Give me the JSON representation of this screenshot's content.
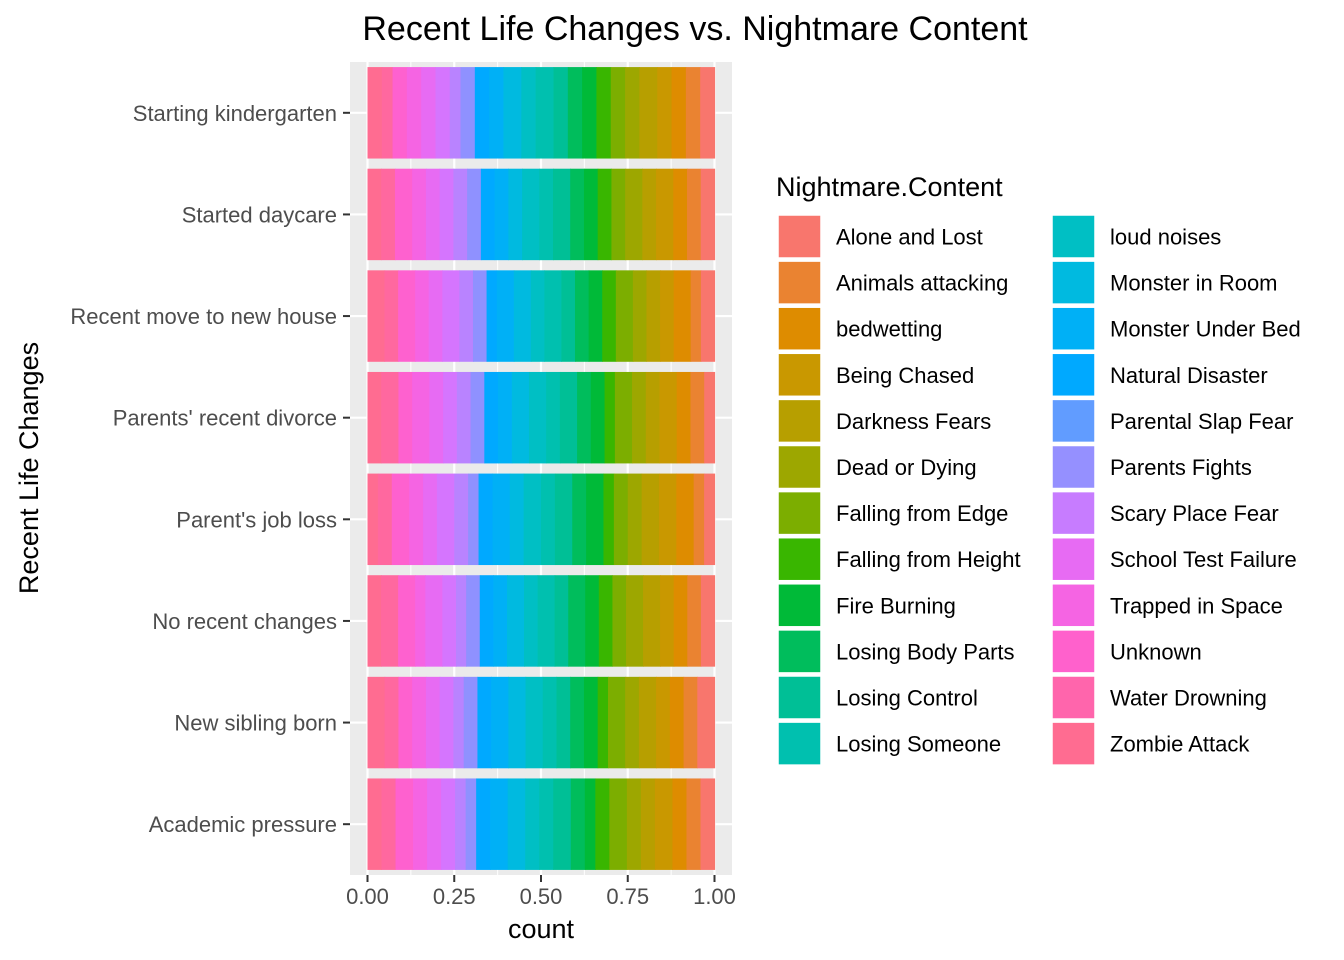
{
  "chart_data": {
    "type": "bar",
    "orientation": "horizontal",
    "stacking": "fill",
    "title": "Recent Life Changes vs. Nightmare Content",
    "xlabel": "count",
    "ylabel": "Recent Life Changes",
    "xlim": [
      0,
      1
    ],
    "x_ticks": [
      "0.00",
      "0.25",
      "0.50",
      "0.75",
      "1.00"
    ],
    "grid": true,
    "legend_position": "right",
    "legend_title": "Nightmare.Content",
    "categories": [
      "Academic pressure",
      "New sibling born",
      "No recent changes",
      "Parent's job loss",
      "Parents' recent divorce",
      "Recent move to new house",
      "Started daycare",
      "Starting kindergarten"
    ],
    "series": [
      {
        "name": "Zombie Attack",
        "color": "#FF6C91",
        "values": [
          0.04,
          0.05,
          0.04,
          0.03,
          0.04,
          0.05,
          0.04,
          0.04
        ]
      },
      {
        "name": "Water Drowning",
        "color": "#FF689F",
        "values": [
          0.04,
          0.04,
          0.05,
          0.04,
          0.05,
          0.04,
          0.04,
          0.03
        ]
      },
      {
        "name": "Unknown",
        "color": "#FE61CF",
        "values": [
          0.05,
          0.04,
          0.05,
          0.05,
          0.04,
          0.05,
          0.05,
          0.04
        ]
      },
      {
        "name": "Trapped in Space",
        "color": "#F564E3",
        "values": [
          0.04,
          0.04,
          0.03,
          0.04,
          0.05,
          0.04,
          0.04,
          0.04
        ]
      },
      {
        "name": "School Test Failure",
        "color": "#E76BF3",
        "values": [
          0.04,
          0.04,
          0.05,
          0.04,
          0.04,
          0.04,
          0.04,
          0.04
        ]
      },
      {
        "name": "Scary Place Fear",
        "color": "#D575FE",
        "values": [
          0.04,
          0.04,
          0.04,
          0.05,
          0.04,
          0.05,
          0.04,
          0.04
        ]
      },
      {
        "name": "Parents Fights",
        "color": "#B983FF",
        "values": [
          0.03,
          0.03,
          0.03,
          0.04,
          0.04,
          0.04,
          0.04,
          0.03
        ]
      },
      {
        "name": "Parental Slap Fear",
        "color": "#8F91FF",
        "values": [
          0.03,
          0.04,
          0.04,
          0.03,
          0.04,
          0.04,
          0.04,
          0.04
        ]
      },
      {
        "name": "Natural Disaster",
        "color": "#00A9FF",
        "values": [
          0.04,
          0.04,
          0.04,
          0.04,
          0.04,
          0.03,
          0.04,
          0.04
        ]
      },
      {
        "name": "Monster Under Bed",
        "color": "#00B0F6",
        "values": [
          0.05,
          0.05,
          0.04,
          0.05,
          0.04,
          0.05,
          0.04,
          0.04
        ]
      },
      {
        "name": "Monster in Room",
        "color": "#00BAE0",
        "values": [
          0.05,
          0.05,
          0.05,
          0.04,
          0.05,
          0.05,
          0.04,
          0.05
        ]
      },
      {
        "name": "loud noises",
        "color": "#00BFC4",
        "values": [
          0.04,
          0.05,
          0.04,
          0.05,
          0.05,
          0.04,
          0.05,
          0.04
        ]
      },
      {
        "name": "Losing Someone",
        "color": "#00C0AF",
        "values": [
          0.04,
          0.04,
          0.05,
          0.04,
          0.04,
          0.05,
          0.04,
          0.05
        ]
      },
      {
        "name": "Losing Control",
        "color": "#00BF96",
        "values": [
          0.05,
          0.04,
          0.04,
          0.05,
          0.05,
          0.04,
          0.05,
          0.04
        ]
      },
      {
        "name": "Losing Body Parts",
        "color": "#00BD5C",
        "values": [
          0.04,
          0.04,
          0.05,
          0.04,
          0.04,
          0.04,
          0.04,
          0.04
        ]
      },
      {
        "name": "Fire Burning",
        "color": "#00BA38",
        "values": [
          0.03,
          0.04,
          0.04,
          0.05,
          0.04,
          0.04,
          0.04,
          0.04
        ]
      },
      {
        "name": "Falling from Height",
        "color": "#39B600",
        "values": [
          0.04,
          0.03,
          0.04,
          0.03,
          0.03,
          0.04,
          0.04,
          0.04
        ]
      },
      {
        "name": "Falling from Edge",
        "color": "#7CAE00",
        "values": [
          0.05,
          0.05,
          0.04,
          0.04,
          0.05,
          0.05,
          0.04,
          0.04
        ]
      },
      {
        "name": "Dead or Dying",
        "color": "#9DA700",
        "values": [
          0.04,
          0.04,
          0.05,
          0.04,
          0.04,
          0.04,
          0.05,
          0.04
        ]
      },
      {
        "name": "Darkness Fears",
        "color": "#B79F00",
        "values": [
          0.04,
          0.05,
          0.05,
          0.05,
          0.04,
          0.04,
          0.04,
          0.05
        ]
      },
      {
        "name": "Being Chased",
        "color": "#C99800",
        "values": [
          0.05,
          0.04,
          0.04,
          0.05,
          0.05,
          0.04,
          0.05,
          0.04
        ]
      },
      {
        "name": "bedwetting",
        "color": "#DE8C00",
        "values": [
          0.04,
          0.04,
          0.04,
          0.05,
          0.04,
          0.05,
          0.04,
          0.04
        ]
      },
      {
        "name": "Animals attacking",
        "color": "#EA8331",
        "values": [
          0.04,
          0.04,
          0.04,
          0.03,
          0.04,
          0.03,
          0.04,
          0.04
        ]
      },
      {
        "name": "Alone and Lost",
        "color": "#F8766D",
        "values": [
          0.04,
          0.05,
          0.04,
          0.03,
          0.03,
          0.04,
          0.04,
          0.04
        ]
      }
    ],
    "legend_entries": [
      {
        "name": "Alone and Lost",
        "color": "#F8766D"
      },
      {
        "name": "Animals attacking",
        "color": "#EA8331"
      },
      {
        "name": "bedwetting",
        "color": "#DE8C00"
      },
      {
        "name": "Being Chased",
        "color": "#C99800"
      },
      {
        "name": "Darkness Fears",
        "color": "#B79F00"
      },
      {
        "name": "Dead or Dying",
        "color": "#9DA700"
      },
      {
        "name": "Falling from Edge",
        "color": "#7CAE00"
      },
      {
        "name": "Falling from Height",
        "color": "#39B600"
      },
      {
        "name": "Fire Burning",
        "color": "#00BA38"
      },
      {
        "name": "Losing Body Parts",
        "color": "#00BD5C"
      },
      {
        "name": "Losing Control",
        "color": "#00BF96"
      },
      {
        "name": "Losing Someone",
        "color": "#00C0AF"
      },
      {
        "name": "loud noises",
        "color": "#00BFC4"
      },
      {
        "name": "Monster in Room",
        "color": "#00BAE0"
      },
      {
        "name": "Monster Under Bed",
        "color": "#00B0F6"
      },
      {
        "name": "Natural Disaster",
        "color": "#00A9FF"
      },
      {
        "name": "Parental Slap Fear",
        "color": "#619CFF"
      },
      {
        "name": "Parents Fights",
        "color": "#9590FF"
      },
      {
        "name": "Scary Place Fear",
        "color": "#C77CFF"
      },
      {
        "name": "School Test Failure",
        "color": "#E76BF3"
      },
      {
        "name": "Trapped in Space",
        "color": "#F564E3"
      },
      {
        "name": "Unknown",
        "color": "#FF61CC"
      },
      {
        "name": "Water Drowning",
        "color": "#FF65AC"
      },
      {
        "name": "Zombie Attack",
        "color": "#FF6C91"
      }
    ]
  }
}
